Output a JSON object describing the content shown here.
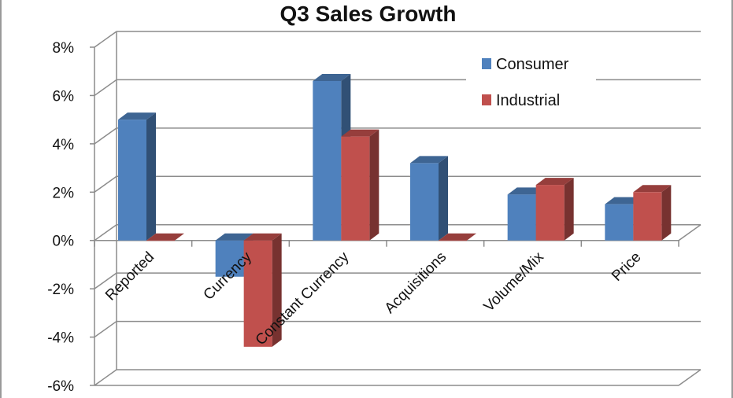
{
  "chart_data": {
    "type": "bar",
    "title": "Q3 Sales Growth",
    "categories": [
      "Reported",
      "Currency",
      "Constant Currency",
      "Acquisitions",
      "Volume/Mix",
      "Price"
    ],
    "series": [
      {
        "name": "Consumer",
        "values": [
          5.0,
          -1.5,
          6.6,
          3.2,
          1.9,
          1.5
        ],
        "color": "#4f81bd"
      },
      {
        "name": "Industrial",
        "values": [
          0.0,
          -4.4,
          4.3,
          0.0,
          2.3,
          2.0
        ],
        "color": "#c0504d"
      }
    ],
    "y_ticks": [
      "8%",
      "6%",
      "4%",
      "2%",
      "0%",
      "-2%",
      "-4%",
      "-6%"
    ],
    "ylim": [
      -6,
      8
    ],
    "legend_position": "top-right",
    "grid": true,
    "style": "3d-clustered-column"
  }
}
